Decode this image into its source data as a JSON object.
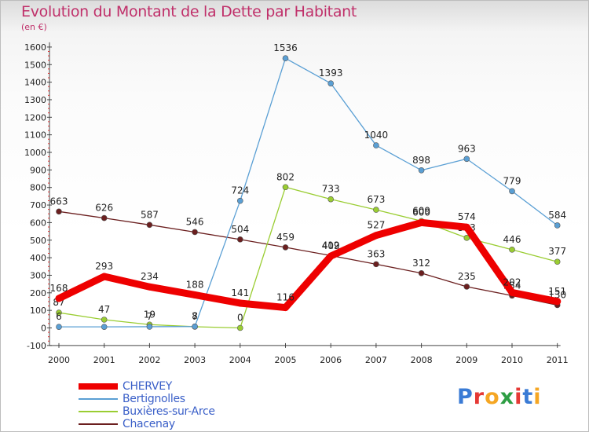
{
  "title": "Evolution du Montant de la Dette par Habitant",
  "subtitle": "(en €)",
  "logo": {
    "letters": [
      "P",
      "r",
      "o",
      "x",
      "i",
      "t",
      "i"
    ],
    "colors": [
      "#3a7bd5",
      "#e53935",
      "#f5a623",
      "#2e9e44",
      "#e53935",
      "#3a7bd5",
      "#f5a623"
    ]
  },
  "chart_data": {
    "type": "line",
    "x": [
      "2000",
      "2001",
      "2002",
      "2003",
      "2004",
      "2005",
      "2006",
      "2007",
      "2008",
      "2009",
      "2010",
      "2011"
    ],
    "ylim": [
      -100,
      1600
    ],
    "yticks": [
      "-100",
      "0",
      "100",
      "200",
      "300",
      "400",
      "500",
      "600",
      "700",
      "800",
      "900",
      "1000",
      "1100",
      "1200",
      "1300",
      "1400",
      "1500",
      "1600"
    ],
    "grid": false,
    "legend_position": "bottom-left",
    "series": [
      {
        "name": "Chacenay",
        "color": "#6b1f1f",
        "values": [
          663,
          626,
          587,
          546,
          504,
          459,
          412,
          363,
          312,
          235,
          184,
          130
        ],
        "labels": [
          "663",
          "626",
          "587",
          "546",
          "504",
          "459",
          "412",
          "363",
          "312",
          "235",
          "184",
          "130"
        ]
      },
      {
        "name": "Buxières-sur-Arce",
        "color": "#9acd32",
        "values": [
          87,
          47,
          19,
          7,
          0,
          802,
          733,
          673,
          609,
          513,
          446,
          377
        ],
        "labels": [
          "87",
          "47",
          "19",
          "7",
          "0",
          "802",
          "733",
          "673",
          "609",
          "513",
          "446",
          "377"
        ]
      },
      {
        "name": "Bertignolles",
        "color": "#5a9fd4",
        "values": [
          6,
          6,
          7,
          8,
          724,
          1536,
          1393,
          1040,
          898,
          963,
          779,
          584
        ],
        "labels": [
          "6",
          "",
          "7",
          "8",
          "724",
          "1536",
          "1393",
          "1040",
          "898",
          "963",
          "779",
          "584"
        ]
      },
      {
        "name": "CHERVEY",
        "color": "#ee0000",
        "values": [
          168,
          293,
          234,
          188,
          141,
          116,
          409,
          527,
          600,
          574,
          202,
          151
        ],
        "labels": [
          "168",
          "293",
          "234",
          "188",
          "141",
          "116",
          "409",
          "527",
          "600",
          "574",
          "202",
          "151"
        ]
      }
    ]
  },
  "legend": [
    {
      "name": "CHERVEY",
      "color": "#ee0000",
      "thick": true
    },
    {
      "name": "Bertignolles",
      "color": "#5a9fd4",
      "thick": false
    },
    {
      "name": "Buxières-sur-Arce",
      "color": "#9acd32",
      "thick": false
    },
    {
      "name": "Chacenay",
      "color": "#6b1f1f",
      "thick": false
    }
  ]
}
